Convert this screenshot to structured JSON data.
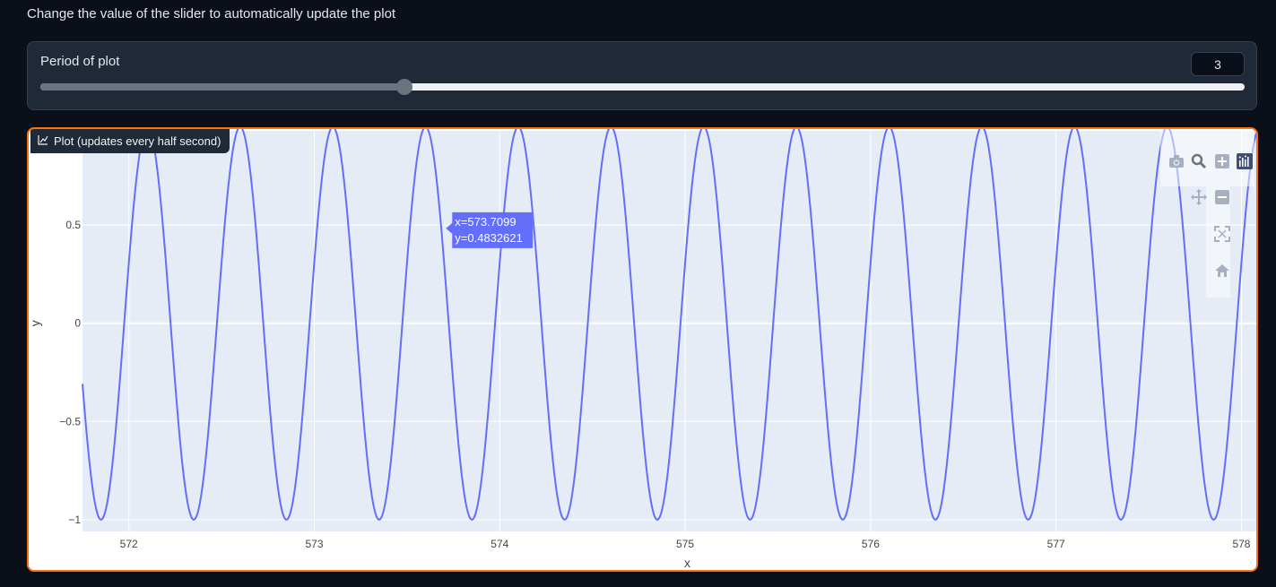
{
  "header": {
    "instructions": "Change the value of the slider to automatically update the plot"
  },
  "slider": {
    "label": "Period of plot",
    "value": "3",
    "min": 1,
    "max": 10,
    "fraction": 0.302
  },
  "plot": {
    "label": "Plot (updates every half second)",
    "tooltip": {
      "x_text": "x=573.7099",
      "y_text": "y=0.4832621"
    },
    "modebar": {
      "icons": [
        "camera-icon",
        "zoom-icon",
        "zoom-in-icon",
        "plotly-logo-icon",
        "pan-icon",
        "zoom-out-icon",
        "autoscale-icon",
        "home-icon"
      ]
    }
  },
  "chart_data": {
    "type": "line",
    "title": "",
    "xlabel": "x",
    "ylabel": "y",
    "xlim": [
      571.75,
      578.08
    ],
    "ylim": [
      -1.06,
      0.98
    ],
    "x_ticks": [
      "572",
      "573",
      "574",
      "575",
      "576",
      "577",
      "578"
    ],
    "x_tick_values": [
      572,
      573,
      574,
      575,
      576,
      577,
      578
    ],
    "y_ticks": [
      "0.5",
      "0",
      "−0.5",
      "−1"
    ],
    "y_tick_values": [
      0.5,
      0,
      -0.5,
      -1
    ],
    "series": [
      {
        "function": "sin",
        "period": 0.5,
        "peak_at": 572.1,
        "x_start": 571.75,
        "x_end": 578.08,
        "amplitude": 1,
        "color": "#636efa"
      }
    ],
    "hover_point": {
      "x": 573.7099,
      "y": 0.4832621
    },
    "grid": true,
    "plot_bg": "#e5ecf6"
  },
  "colors": {
    "page_bg": "#0b0f19",
    "panel_bg": "#1f2937",
    "accent": "#f97316",
    "line": "#636efa"
  }
}
